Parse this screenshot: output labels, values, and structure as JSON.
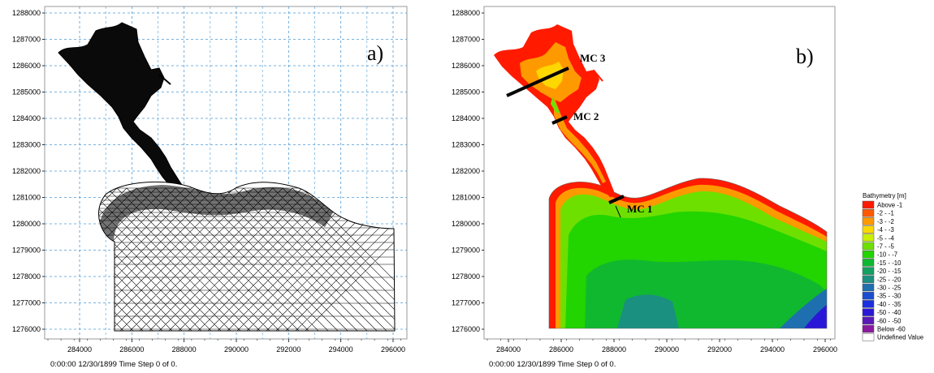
{
  "panel_a": {
    "tag": "a)",
    "status": "0:00:00 12/30/1899  Time Step 0 of 0.",
    "y_ticks": [
      "1288000",
      "1287000",
      "1286000",
      "1285000",
      "1284000",
      "1283000",
      "1282000",
      "1281000",
      "1280000",
      "1279000",
      "1278000",
      "1277000",
      "1276000"
    ],
    "x_ticks": [
      "284000",
      "286000",
      "288000",
      "290000",
      "292000",
      "294000",
      "296000"
    ]
  },
  "panel_b": {
    "tag": "b)",
    "status": "0:00:00 12/30/1899  Time Step 0 of 0.",
    "y_ticks": [
      "1288000",
      "1287000",
      "1286000",
      "1285000",
      "1284000",
      "1283000",
      "1282000",
      "1281000",
      "1280000",
      "1279000",
      "1278000",
      "1277000",
      "1276000"
    ],
    "x_ticks": [
      "284000",
      "286000",
      "288000",
      "290000",
      "292000",
      "294000",
      "296000"
    ],
    "sections": [
      "MC 3",
      "MC 2",
      "MC 1"
    ]
  },
  "legend": {
    "title": "Bathymetry [m]",
    "entries": [
      {
        "label": "Above  -1",
        "color": "#ff1a00"
      },
      {
        "label": "-2 -  -1",
        "color": "#ff5a00"
      },
      {
        "label": "-3 -  -2",
        "color": "#ff9900"
      },
      {
        "label": "-4 -  -3",
        "color": "#ffd700"
      },
      {
        "label": "-5 -  -4",
        "color": "#c8f000"
      },
      {
        "label": "-7 -  -5",
        "color": "#6ee000"
      },
      {
        "label": "-10 -  -7",
        "color": "#22d400"
      },
      {
        "label": "-15 - -10",
        "color": "#10b830"
      },
      {
        "label": "-20 - -15",
        "color": "#14a060"
      },
      {
        "label": "-25 - -20",
        "color": "#1a9080"
      },
      {
        "label": "-30 - -25",
        "color": "#1e6fb0"
      },
      {
        "label": "-35 - -30",
        "color": "#1a4ed0"
      },
      {
        "label": "-40 - -35",
        "color": "#1a30e0"
      },
      {
        "label": "-50 - -40",
        "color": "#2a18d8"
      },
      {
        "label": "-60 - -50",
        "color": "#5a1ab8"
      },
      {
        "label": "Below -60",
        "color": "#8a1aa0"
      },
      {
        "label": "Undefined Value",
        "color": "#ffffff"
      }
    ]
  }
}
